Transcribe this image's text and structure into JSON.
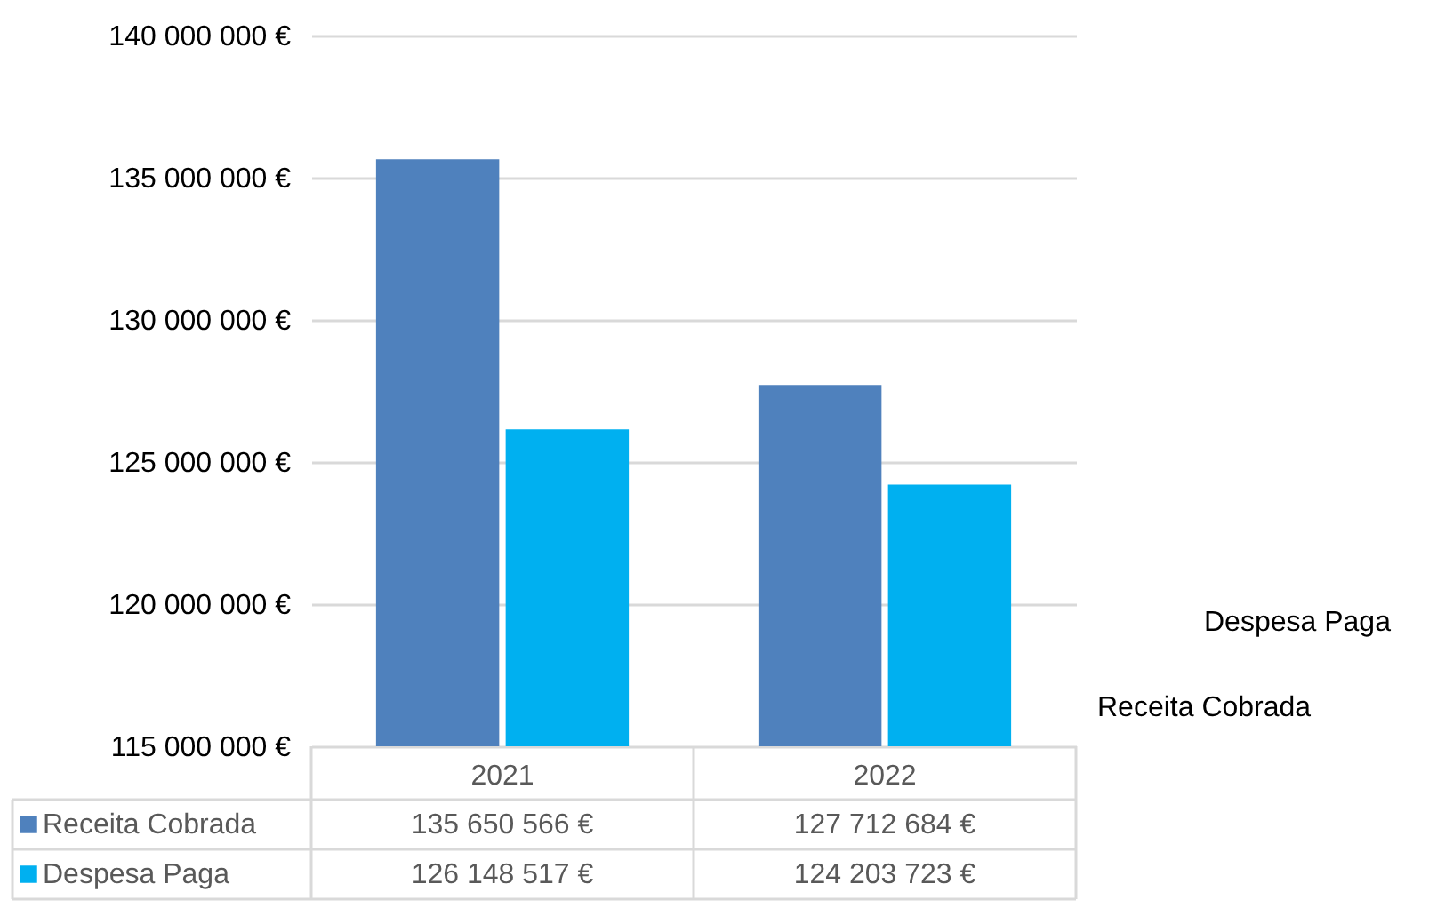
{
  "chart_data": {
    "type": "bar",
    "categories": [
      "2021",
      "2022"
    ],
    "series": [
      {
        "name": "Receita Cobrada",
        "color": "#4f81bd",
        "values": [
          135650566,
          127712684
        ],
        "value_labels": [
          "135 650 566 €",
          "127 712 684 €"
        ]
      },
      {
        "name": "Despesa Paga",
        "color": "#00b0f0",
        "values": [
          126148517,
          124203723
        ],
        "value_labels": [
          "126 148 517 €",
          "124 203 723 €"
        ]
      }
    ],
    "ylim": [
      115000000,
      140000000
    ],
    "yticks": [
      {
        "value": 115000000,
        "label": "115 000 000 €"
      },
      {
        "value": 120000000,
        "label": "120 000 000 €"
      },
      {
        "value": 125000000,
        "label": "125 000 000 €"
      },
      {
        "value": 130000000,
        "label": "130 000 000 €"
      },
      {
        "value": 135000000,
        "label": "135 000 000 €"
      },
      {
        "value": 140000000,
        "label": "140 000 000 €"
      }
    ],
    "grid": "y",
    "legend": "bottom"
  }
}
